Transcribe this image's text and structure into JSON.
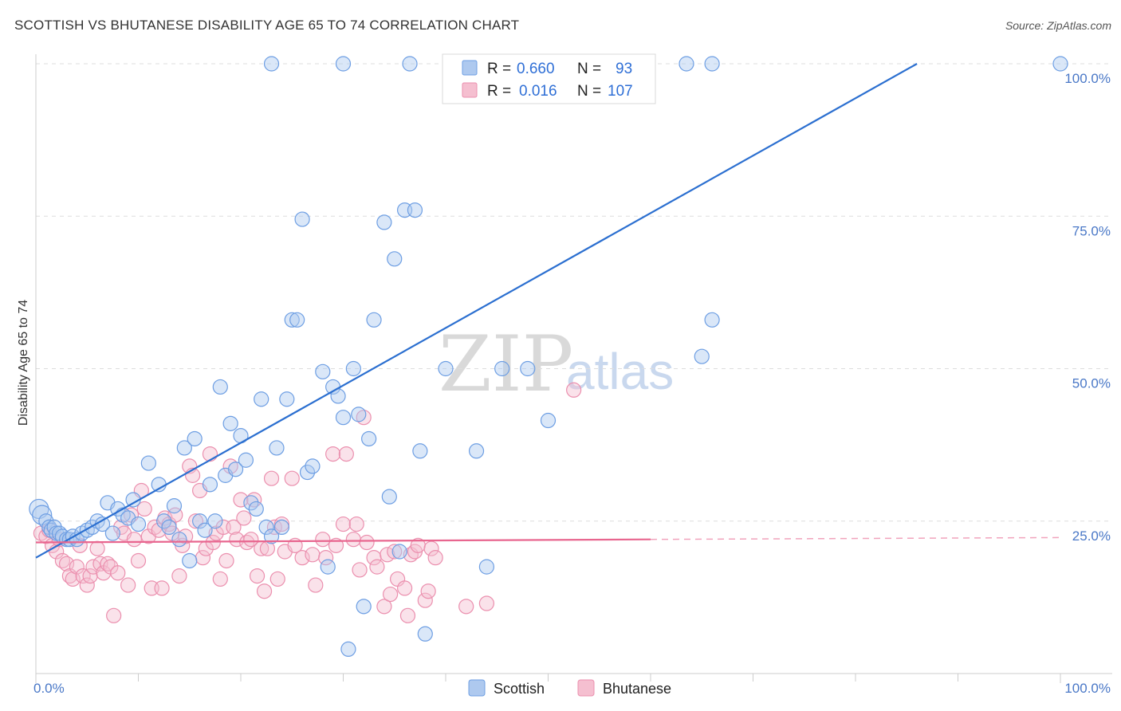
{
  "title": "SCOTTISH VS BHUTANESE DISABILITY AGE 65 TO 74 CORRELATION CHART",
  "source": "Source: ZipAtlas.com",
  "watermark": {
    "zip": "ZIP",
    "atlas": "atlas"
  },
  "colors": {
    "scottish_fill": "#aec9ef",
    "scottish_stroke": "#6d9ee3",
    "scottish_line": "#2b6fd0",
    "bhutanese_fill": "#f5bfd0",
    "bhutanese_stroke": "#eb8fae",
    "bhutanese_line": "#e8668f",
    "grid": "#dddddd",
    "tick_label": "#4a78c7"
  },
  "legend": {
    "rows": [
      {
        "r_label": "R =",
        "r_value": "0.660",
        "n_label": "N =",
        "n_value": "93"
      },
      {
        "r_label": "R =",
        "r_value": "0.016",
        "n_label": "N =",
        "n_value": "107"
      }
    ]
  },
  "chart_data": {
    "type": "scatter",
    "title": "SCOTTISH VS BHUTANESE DISABILITY AGE 65 TO 74 CORRELATION CHART",
    "xlabel": "",
    "ylabel": "Disability Age 65 to 74",
    "xlim": [
      0,
      100
    ],
    "ylim": [
      0,
      100
    ],
    "x_tick_labels": [
      "0.0%",
      "100.0%"
    ],
    "y_tick_labels": [
      "25.0%",
      "50.0%",
      "75.0%",
      "100.0%"
    ],
    "y_ticks": [
      25,
      50,
      75,
      100
    ],
    "grid": true,
    "legend_position": "top-center",
    "series": [
      {
        "name": "Scottish",
        "r": 0.66,
        "n": 93,
        "trend": {
          "x0": 0,
          "y0": 19,
          "x1": 86,
          "y1": 100
        },
        "points": [
          [
            0.3,
            27
          ],
          [
            0.6,
            26
          ],
          [
            1.0,
            25
          ],
          [
            1.3,
            24
          ],
          [
            1.5,
            23.5
          ],
          [
            1.8,
            24
          ],
          [
            2.0,
            23
          ],
          [
            2.3,
            23
          ],
          [
            2.6,
            22.5
          ],
          [
            3.0,
            22
          ],
          [
            3.3,
            22
          ],
          [
            3.6,
            22.5
          ],
          [
            4.0,
            22
          ],
          [
            4.5,
            23
          ],
          [
            5.0,
            23.5
          ],
          [
            5.5,
            24
          ],
          [
            6.0,
            25
          ],
          [
            6.5,
            24.5
          ],
          [
            7.0,
            28
          ],
          [
            7.5,
            23
          ],
          [
            8.0,
            27
          ],
          [
            8.5,
            26
          ],
          [
            9.0,
            25.5
          ],
          [
            9.5,
            28.5
          ],
          [
            10.0,
            24.5
          ],
          [
            11.0,
            34.5
          ],
          [
            12.0,
            31
          ],
          [
            12.5,
            25
          ],
          [
            13.0,
            24
          ],
          [
            13.5,
            27.5
          ],
          [
            14.0,
            22
          ],
          [
            14.5,
            37
          ],
          [
            15.0,
            18.5
          ],
          [
            15.5,
            38.5
          ],
          [
            16.0,
            25
          ],
          [
            16.5,
            23.5
          ],
          [
            17.0,
            31
          ],
          [
            17.5,
            25
          ],
          [
            18.0,
            47
          ],
          [
            18.5,
            32.5
          ],
          [
            19.0,
            41
          ],
          [
            19.5,
            33.5
          ],
          [
            20.0,
            39
          ],
          [
            20.5,
            35
          ],
          [
            21.0,
            28
          ],
          [
            21.5,
            27
          ],
          [
            22.0,
            45
          ],
          [
            22.5,
            24
          ],
          [
            23.0,
            22.5
          ],
          [
            23.5,
            37
          ],
          [
            24.0,
            24
          ],
          [
            24.5,
            45
          ],
          [
            25.0,
            58
          ],
          [
            25.5,
            58
          ],
          [
            26.0,
            74.5
          ],
          [
            26.5,
            33
          ],
          [
            27.0,
            34
          ],
          [
            28.0,
            49.5
          ],
          [
            28.5,
            17.5
          ],
          [
            29.0,
            47
          ],
          [
            29.5,
            45.5
          ],
          [
            30.0,
            42
          ],
          [
            30.5,
            4
          ],
          [
            31.0,
            50
          ],
          [
            31.5,
            42.5
          ],
          [
            32.0,
            11
          ],
          [
            32.5,
            38.5
          ],
          [
            33.0,
            58
          ],
          [
            34.0,
            74
          ],
          [
            34.5,
            29
          ],
          [
            35.0,
            68
          ],
          [
            35.5,
            20
          ],
          [
            36.0,
            76
          ],
          [
            37.0,
            76
          ],
          [
            37.5,
            36.5
          ],
          [
            38.0,
            6.5
          ],
          [
            40.0,
            50
          ],
          [
            43.0,
            36.5
          ],
          [
            44.0,
            17.5
          ],
          [
            45.5,
            50
          ],
          [
            48.0,
            50
          ],
          [
            50.0,
            41.5
          ],
          [
            52.0,
            100
          ],
          [
            53.5,
            100
          ],
          [
            56.5,
            100
          ],
          [
            65.0,
            52
          ],
          [
            66.0,
            58
          ],
          [
            23.0,
            100
          ],
          [
            30.0,
            100
          ],
          [
            36.5,
            100
          ],
          [
            63.5,
            100
          ],
          [
            66.0,
            100
          ],
          [
            100.0,
            100
          ]
        ]
      },
      {
        "name": "Bhutanese",
        "r": 0.016,
        "n": 107,
        "trend": {
          "x0": 0,
          "y0": 21.5,
          "x1": 60,
          "y1": 22,
          "x_dash_end": 100,
          "y_dash_end": 22.3
        },
        "points": [
          [
            0.5,
            23
          ],
          [
            1.0,
            22.5
          ],
          [
            1.3,
            23.5
          ],
          [
            1.6,
            21
          ],
          [
            2.0,
            20
          ],
          [
            2.3,
            22
          ],
          [
            2.6,
            18.5
          ],
          [
            3.0,
            18
          ],
          [
            3.3,
            16
          ],
          [
            3.6,
            15.5
          ],
          [
            4.0,
            17.5
          ],
          [
            4.3,
            21
          ],
          [
            4.6,
            16
          ],
          [
            5.0,
            14.5
          ],
          [
            5.3,
            16
          ],
          [
            5.6,
            17.5
          ],
          [
            6.0,
            20.5
          ],
          [
            6.3,
            18
          ],
          [
            6.6,
            16.5
          ],
          [
            7.0,
            18
          ],
          [
            7.3,
            17.5
          ],
          [
            7.6,
            9.5
          ],
          [
            8.0,
            16.5
          ],
          [
            8.3,
            24
          ],
          [
            8.6,
            23
          ],
          [
            9.0,
            14.5
          ],
          [
            9.3,
            26
          ],
          [
            9.6,
            22
          ],
          [
            10.0,
            18.5
          ],
          [
            10.3,
            30
          ],
          [
            10.6,
            27
          ],
          [
            11.0,
            22.5
          ],
          [
            11.3,
            14
          ],
          [
            11.6,
            24
          ],
          [
            12.0,
            23.5
          ],
          [
            12.3,
            14
          ],
          [
            12.6,
            25.5
          ],
          [
            13.0,
            24.5
          ],
          [
            13.3,
            23
          ],
          [
            13.6,
            26
          ],
          [
            14.0,
            16
          ],
          [
            14.3,
            21
          ],
          [
            14.6,
            22.5
          ],
          [
            15.0,
            34
          ],
          [
            15.3,
            32.5
          ],
          [
            15.6,
            25
          ],
          [
            16.0,
            30
          ],
          [
            16.3,
            19
          ],
          [
            16.6,
            20.5
          ],
          [
            17.0,
            36
          ],
          [
            17.3,
            21.5
          ],
          [
            17.6,
            23
          ],
          [
            18.0,
            15.5
          ],
          [
            18.3,
            24
          ],
          [
            18.6,
            18.5
          ],
          [
            19.0,
            34
          ],
          [
            19.3,
            24
          ],
          [
            19.6,
            22
          ],
          [
            20.0,
            28.5
          ],
          [
            20.3,
            25.5
          ],
          [
            20.6,
            21.5
          ],
          [
            21.0,
            22
          ],
          [
            21.3,
            28.5
          ],
          [
            21.6,
            16
          ],
          [
            22.0,
            20.5
          ],
          [
            22.3,
            13.5
          ],
          [
            22.6,
            20.5
          ],
          [
            23.0,
            32
          ],
          [
            23.3,
            24
          ],
          [
            23.6,
            15.5
          ],
          [
            24.0,
            24.5
          ],
          [
            24.3,
            20
          ],
          [
            25.0,
            32
          ],
          [
            25.3,
            21
          ],
          [
            26.0,
            19
          ],
          [
            27.0,
            19.5
          ],
          [
            27.3,
            14.5
          ],
          [
            28.0,
            22
          ],
          [
            28.3,
            19
          ],
          [
            29.0,
            36
          ],
          [
            29.3,
            21
          ],
          [
            30.0,
            24.5
          ],
          [
            30.3,
            36
          ],
          [
            31.0,
            22
          ],
          [
            31.3,
            24.5
          ],
          [
            31.6,
            17
          ],
          [
            32.0,
            42
          ],
          [
            32.3,
            21.5
          ],
          [
            33.0,
            19
          ],
          [
            33.3,
            17.5
          ],
          [
            34.0,
            11
          ],
          [
            34.3,
            19.5
          ],
          [
            34.6,
            13
          ],
          [
            35.0,
            20
          ],
          [
            35.3,
            15.5
          ],
          [
            36.0,
            14
          ],
          [
            36.3,
            9.5
          ],
          [
            36.6,
            19.5
          ],
          [
            37.0,
            20
          ],
          [
            37.3,
            21
          ],
          [
            38.0,
            12
          ],
          [
            38.3,
            13.5
          ],
          [
            38.6,
            20.5
          ],
          [
            39.0,
            19
          ],
          [
            42.0,
            11
          ],
          [
            44.0,
            11.5
          ],
          [
            52.5,
            46.5
          ]
        ]
      }
    ]
  },
  "bottom_legend": [
    "Scottish",
    "Bhutanese"
  ]
}
